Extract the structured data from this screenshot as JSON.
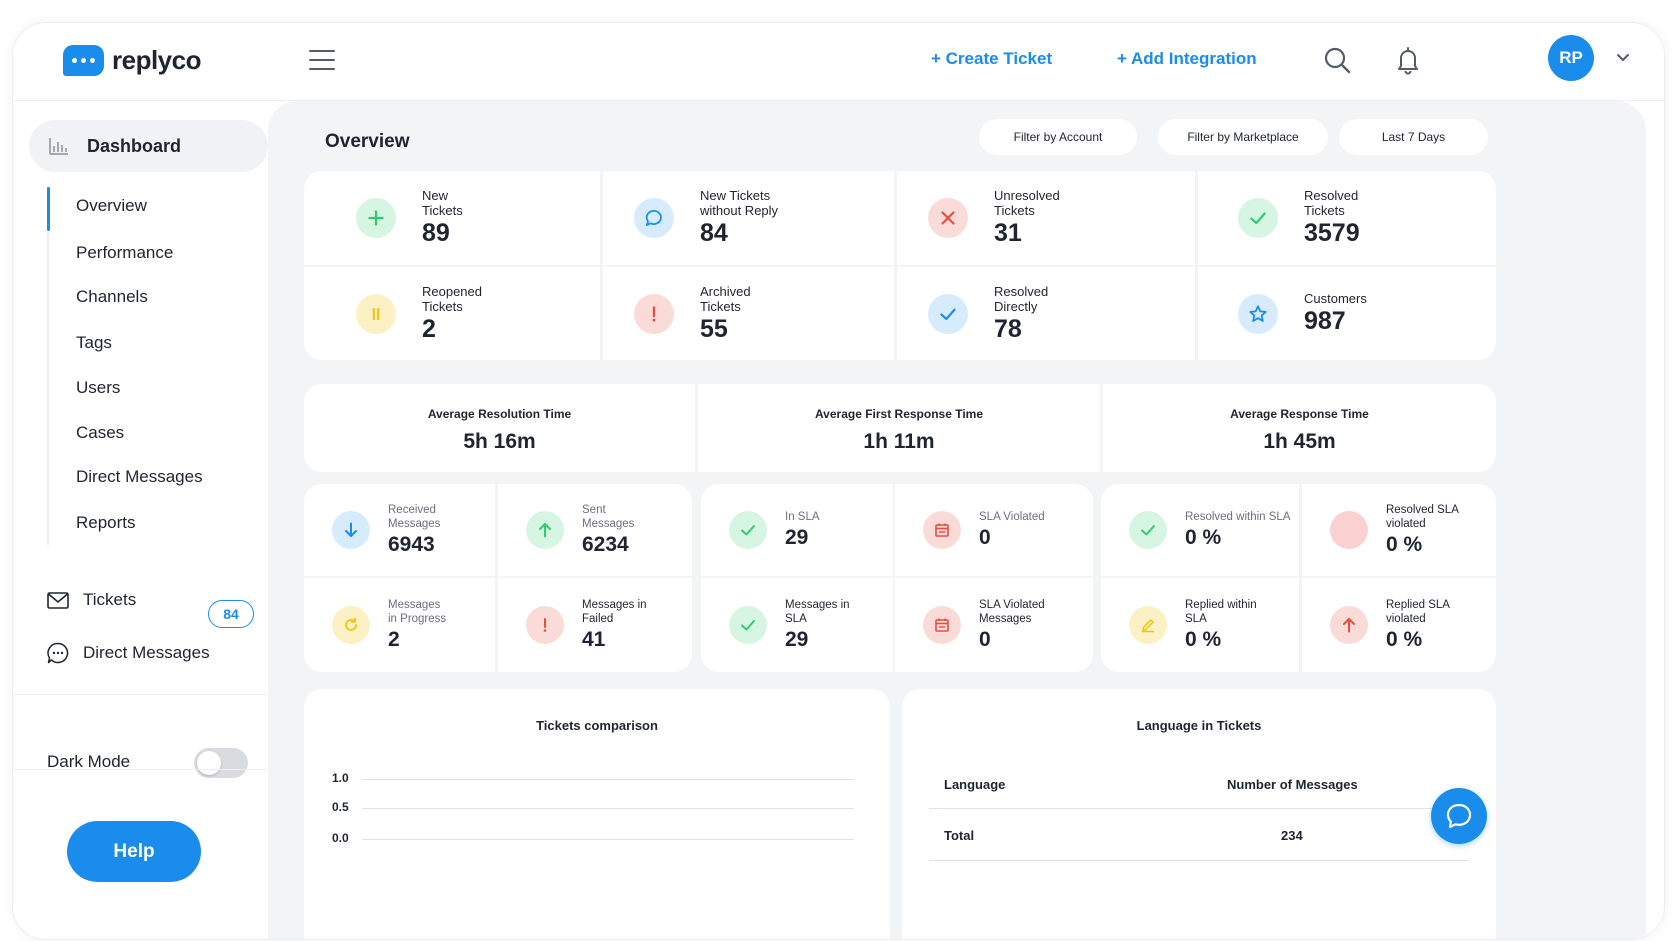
{
  "brand": {
    "name": "replyco"
  },
  "header": {
    "create_ticket": "+ Create Ticket",
    "add_integration": "+ Add Integration",
    "avatar_initials": "RP",
    "accent": "#1a8cec"
  },
  "sidebar": {
    "dashboard": "Dashboard",
    "sub_items": [
      "Overview",
      "Performance",
      "Channels",
      "Tags",
      "Users",
      "Cases",
      "Direct Messages",
      "Reports"
    ],
    "tickets": {
      "label": "Tickets",
      "count": "84"
    },
    "direct_messages": "Direct Messages",
    "dark_mode": {
      "label": "Dark Mode",
      "enabled": false
    },
    "help": "Help"
  },
  "main": {
    "title": "Overview",
    "filters": [
      "Filter by Account",
      "Filter by Marketplace",
      "Last 7 Days"
    ],
    "ticket_stats": [
      {
        "label": "New\nTickets",
        "value": "89",
        "icon": "plus-icon",
        "color": "#2ecc71",
        "bg": "#d7f5e3"
      },
      {
        "label": "New Tickets\nwithout Reply",
        "value": "84",
        "icon": "chat-bubble-icon",
        "color": "#1a8cec",
        "bg": "#d6ebfb"
      },
      {
        "label": "Unresolved\nTickets",
        "value": "31",
        "icon": "x-icon",
        "color": "#e74c3c",
        "bg": "#fadbd8"
      },
      {
        "label": "Resolved\nTickets",
        "value": "3579",
        "icon": "check-icon",
        "color": "#2ecc71",
        "bg": "#d7f5e3"
      },
      {
        "label": "Reopened\nTickets",
        "value": "2",
        "icon": "pause-icon",
        "color": "#f1c40f",
        "bg": "#fcf1c4"
      },
      {
        "label": "Archived\nTickets",
        "value": "55",
        "icon": "exclamation-icon",
        "color": "#e74c3c",
        "bg": "#fadbd8"
      },
      {
        "label": "Resolved\nDirectly",
        "value": "78",
        "icon": "check-icon",
        "color": "#1a8cec",
        "bg": "#d6ebfb"
      },
      {
        "label": "Customers",
        "value": "987",
        "icon": "star-icon",
        "color": "#1a8cec",
        "bg": "#d6ebfb"
      }
    ],
    "averages": [
      {
        "label": "Average Resolution Time",
        "value": "5h 16m"
      },
      {
        "label": "Average First Response Time",
        "value": "1h 11m"
      },
      {
        "label": "Average Response Time",
        "value": "1h 45m"
      }
    ],
    "message_stats": [
      {
        "label": "Received\nMessages",
        "value": "6943",
        "icon": "arrow-down-icon",
        "color": "#1a8cec",
        "bg": "#d6ebfb",
        "dark": false
      },
      {
        "label": "Sent\nMessages",
        "value": "6234",
        "icon": "arrow-up-icon",
        "color": "#2ecc71",
        "bg": "#d7f5e3",
        "dark": false
      },
      {
        "label": "In SLA",
        "value": "29",
        "icon": "check-icon",
        "color": "#2ecc71",
        "bg": "#d7f5e3",
        "dark": false
      },
      {
        "label": "SLA Violated",
        "value": "0",
        "icon": "calendar-icon",
        "color": "#e74c3c",
        "bg": "#fadbd8",
        "dark": false
      },
      {
        "label": "Resolved within SLA",
        "value": "0 %",
        "icon": "check-icon",
        "color": "#2ecc71",
        "bg": "#d7f5e3",
        "dark": false
      },
      {
        "label": "Resolved SLA\nviolated",
        "value": "0 %",
        "icon": "none",
        "color": "#e74c3c",
        "bg": "#fad0d0",
        "dark": true
      },
      {
        "label": "Messages\nin Progress",
        "value": "2",
        "icon": "refresh-icon",
        "color": "#f1c40f",
        "bg": "#fcf1c4",
        "dark": false
      },
      {
        "label": "Messages in\nFailed",
        "value": "41",
        "icon": "exclamation-icon",
        "color": "#e74c3c",
        "bg": "#fadbd8",
        "dark": true
      },
      {
        "label": "Messages in\nSLA",
        "value": "29",
        "icon": "check-icon",
        "color": "#2ecc71",
        "bg": "#d7f5e3",
        "dark": true
      },
      {
        "label": "SLA Violated\nMessages",
        "value": "0",
        "icon": "calendar-icon",
        "color": "#e74c3c",
        "bg": "#fadbd8",
        "dark": true
      },
      {
        "label": "Replied within\nSLA",
        "value": "0 %",
        "icon": "pencil-icon",
        "color": "#f1c40f",
        "bg": "#fcf1c4",
        "dark": true
      },
      {
        "label": "Replied SLA\nviolated",
        "value": "0 %",
        "icon": "arrow-up-icon",
        "color": "#e74c3c",
        "bg": "#fadbd8",
        "dark": true
      }
    ],
    "tickets_comparison": {
      "title": "Tickets comparison",
      "y_ticks": [
        "1.0",
        "0.5",
        "0.0"
      ]
    },
    "language_panel": {
      "title": "Language in Tickets",
      "col_language": "Language",
      "col_messages": "Number of Messages",
      "total_label": "Total",
      "total_value": "234"
    }
  }
}
